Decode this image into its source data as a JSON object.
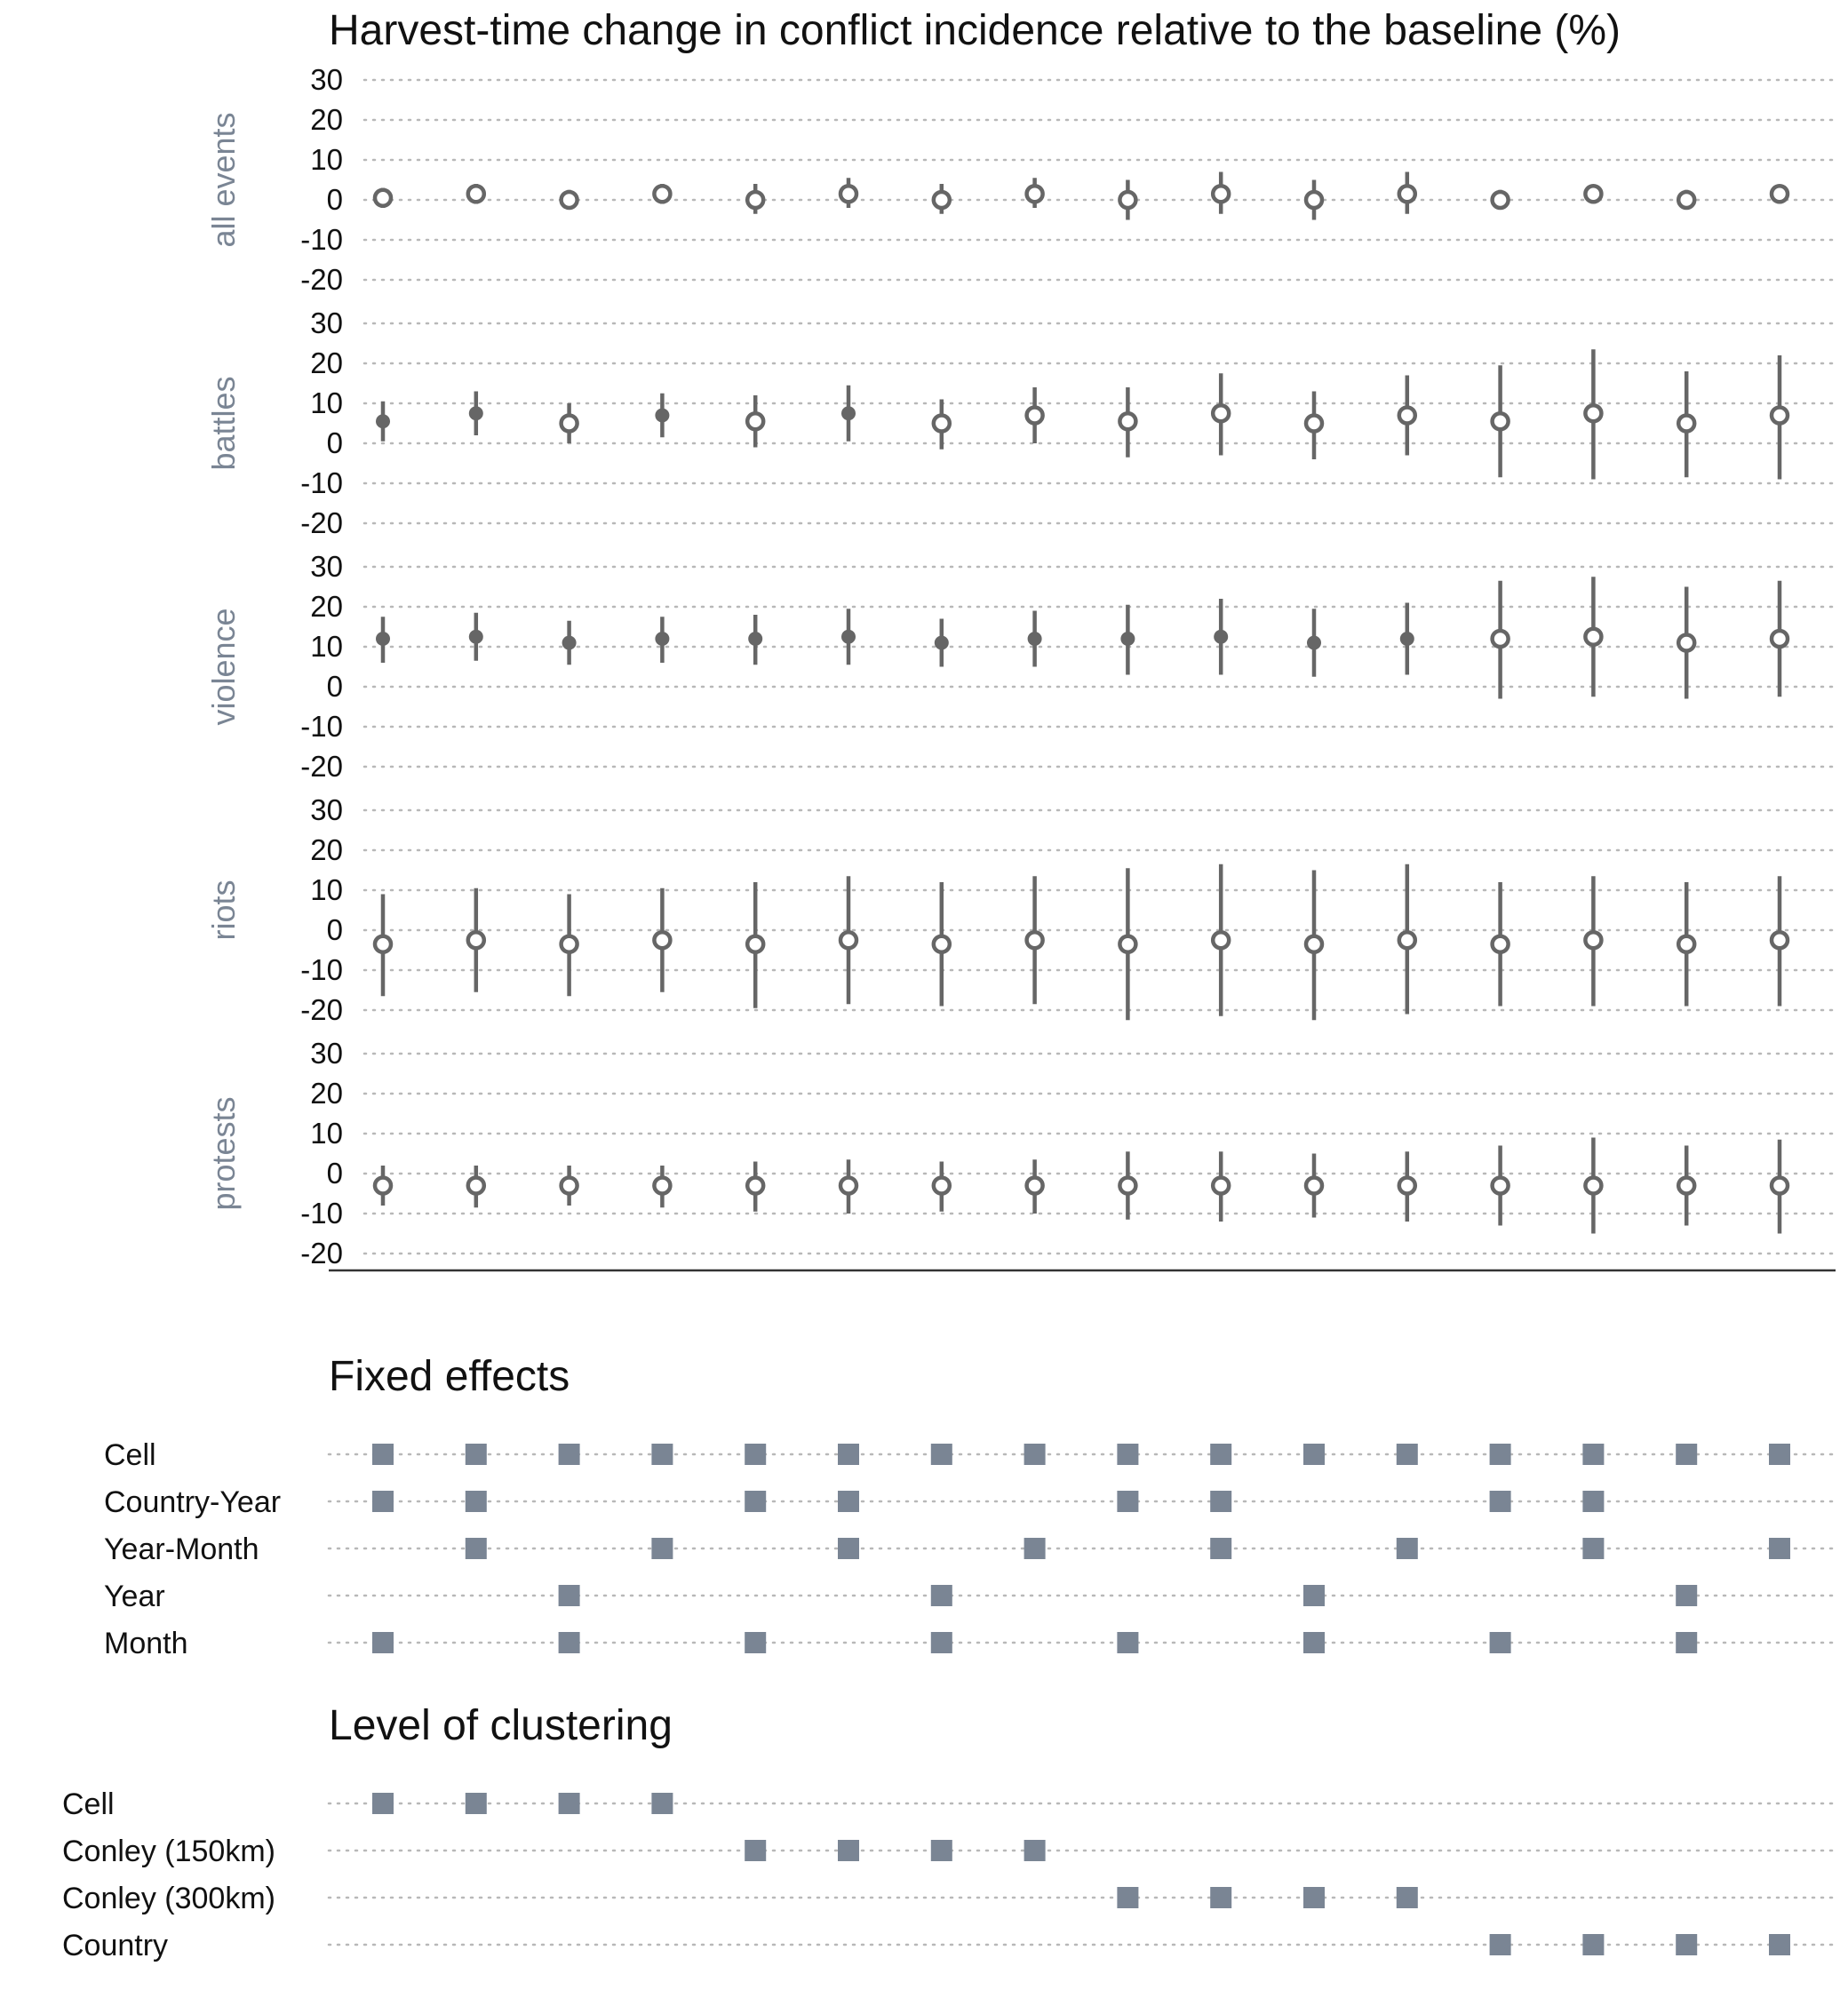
{
  "colors": {
    "estimate": "#666666",
    "marker": "#7a8594",
    "grid": "#b8b8b8",
    "text": "#111111",
    "panel_label": "#7a8594"
  },
  "chart_data": {
    "type": "scatter",
    "title": "Harvest-time change in conflict incidence relative to the baseline (%)",
    "ylim": [
      -20,
      30
    ],
    "yticks": [
      30,
      20,
      10,
      0,
      -10,
      -20
    ],
    "grid": true,
    "n_models": 16,
    "panels": [
      {
        "label": "all events",
        "est": [
          0.5,
          1.5,
          0.0,
          1.5,
          0.0,
          1.5,
          0.0,
          1.5,
          0.0,
          1.5,
          0.0,
          1.5,
          0.0,
          1.5,
          0.0,
          1.5
        ],
        "low": [
          -2.0,
          -1.0,
          -2.0,
          -1.0,
          -3.5,
          -2.0,
          -3.5,
          -2.0,
          -5.0,
          -3.5,
          -5.0,
          -3.5,
          -2.0,
          -0.5,
          -2.0,
          -0.5
        ],
        "high": [
          3.0,
          4.0,
          2.5,
          4.0,
          4.0,
          5.5,
          4.0,
          5.5,
          5.0,
          7.0,
          5.0,
          7.0,
          2.5,
          3.5,
          2.5,
          3.5
        ],
        "significant": [
          false,
          false,
          false,
          false,
          false,
          false,
          false,
          false,
          false,
          false,
          false,
          false,
          false,
          false,
          false,
          false
        ]
      },
      {
        "label": "battles",
        "est": [
          5.5,
          7.5,
          5.0,
          7.0,
          5.5,
          7.5,
          5.0,
          7.0,
          5.5,
          7.5,
          5.0,
          7.0,
          5.5,
          7.5,
          5.0,
          7.0
        ],
        "low": [
          0.5,
          2.0,
          0.0,
          1.5,
          -1.0,
          0.5,
          -1.5,
          0.0,
          -3.5,
          -3.0,
          -4.0,
          -3.0,
          -8.5,
          -9.0,
          -8.5,
          -9.0
        ],
        "high": [
          10.5,
          13.0,
          10.0,
          12.5,
          12.0,
          14.5,
          11.0,
          14.0,
          14.0,
          17.5,
          13.0,
          17.0,
          19.5,
          23.5,
          18.0,
          22.0
        ],
        "significant": [
          true,
          true,
          false,
          true,
          false,
          true,
          false,
          false,
          false,
          false,
          false,
          false,
          false,
          false,
          false,
          false
        ]
      },
      {
        "label": "violence",
        "est": [
          12.0,
          12.5,
          11.0,
          12.0,
          12.0,
          12.5,
          11.0,
          12.0,
          12.0,
          12.5,
          11.0,
          12.0,
          12.0,
          12.5,
          11.0,
          12.0
        ],
        "low": [
          6.0,
          6.5,
          5.5,
          6.0,
          5.5,
          5.5,
          5.0,
          5.0,
          3.0,
          3.0,
          2.5,
          3.0,
          -3.0,
          -2.5,
          -3.0,
          -2.5
        ],
        "high": [
          17.5,
          18.5,
          16.5,
          17.5,
          18.0,
          19.5,
          17.0,
          19.0,
          20.5,
          22.0,
          19.5,
          21.0,
          26.5,
          27.5,
          25.0,
          26.5
        ],
        "significant": [
          true,
          true,
          true,
          true,
          true,
          true,
          true,
          true,
          true,
          true,
          true,
          true,
          false,
          false,
          false,
          false
        ]
      },
      {
        "label": "riots",
        "est": [
          -3.5,
          -2.5,
          -3.5,
          -2.5,
          -3.5,
          -2.5,
          -3.5,
          -2.5,
          -3.5,
          -2.5,
          -3.5,
          -2.5,
          -3.5,
          -2.5,
          -3.5,
          -2.5
        ],
        "low": [
          -16.5,
          -15.5,
          -16.5,
          -15.5,
          -19.5,
          -18.5,
          -19.0,
          -18.5,
          -22.5,
          -21.5,
          -22.5,
          -21.0,
          -19.0,
          -19.0,
          -19.0,
          -19.0
        ],
        "high": [
          9.0,
          10.5,
          9.0,
          10.5,
          12.0,
          13.5,
          12.0,
          13.5,
          15.5,
          16.5,
          15.0,
          16.5,
          12.0,
          13.5,
          12.0,
          13.5
        ],
        "significant": [
          false,
          false,
          false,
          false,
          false,
          false,
          false,
          false,
          false,
          false,
          false,
          false,
          false,
          false,
          false,
          false
        ]
      },
      {
        "label": "protests",
        "est": [
          -3.0,
          -3.0,
          -3.0,
          -3.0,
          -3.0,
          -3.0,
          -3.0,
          -3.0,
          -3.0,
          -3.0,
          -3.0,
          -3.0,
          -3.0,
          -3.0,
          -3.0,
          -3.0
        ],
        "low": [
          -8.0,
          -8.5,
          -8.0,
          -8.5,
          -9.5,
          -10.0,
          -9.5,
          -10.0,
          -11.5,
          -12.0,
          -11.0,
          -12.0,
          -13.0,
          -15.0,
          -13.0,
          -15.0
        ],
        "high": [
          2.0,
          2.0,
          2.0,
          2.0,
          3.0,
          3.5,
          3.0,
          3.5,
          5.5,
          5.5,
          5.0,
          5.5,
          7.0,
          9.0,
          7.0,
          8.5
        ],
        "significant": [
          false,
          false,
          false,
          false,
          false,
          false,
          false,
          false,
          false,
          false,
          false,
          false,
          false,
          false,
          false,
          false
        ]
      }
    ]
  },
  "fixed_effects": {
    "title": "Fixed effects",
    "rows": [
      {
        "label": "Cell",
        "active": [
          1,
          1,
          1,
          1,
          1,
          1,
          1,
          1,
          1,
          1,
          1,
          1,
          1,
          1,
          1,
          1
        ]
      },
      {
        "label": "Country-Year",
        "active": [
          1,
          1,
          0,
          0,
          1,
          1,
          0,
          0,
          1,
          1,
          0,
          0,
          1,
          1,
          0,
          0
        ]
      },
      {
        "label": "Year-Month",
        "active": [
          0,
          1,
          0,
          1,
          0,
          1,
          0,
          1,
          0,
          1,
          0,
          1,
          0,
          1,
          0,
          1
        ]
      },
      {
        "label": "Year",
        "active": [
          0,
          0,
          1,
          0,
          0,
          0,
          1,
          0,
          0,
          0,
          1,
          0,
          0,
          0,
          1,
          0
        ]
      },
      {
        "label": "Month",
        "active": [
          1,
          0,
          1,
          0,
          1,
          0,
          1,
          0,
          1,
          0,
          1,
          0,
          1,
          0,
          1,
          0
        ]
      }
    ]
  },
  "clustering": {
    "title": "Level of clustering",
    "rows": [
      {
        "label": "Cell",
        "active": [
          1,
          1,
          1,
          1,
          0,
          0,
          0,
          0,
          0,
          0,
          0,
          0,
          0,
          0,
          0,
          0
        ]
      },
      {
        "label": "Conley (150km)",
        "active": [
          0,
          0,
          0,
          0,
          1,
          1,
          1,
          1,
          0,
          0,
          0,
          0,
          0,
          0,
          0,
          0
        ]
      },
      {
        "label": "Conley (300km)",
        "active": [
          0,
          0,
          0,
          0,
          0,
          0,
          0,
          0,
          1,
          1,
          1,
          1,
          0,
          0,
          0,
          0
        ]
      },
      {
        "label": "Country",
        "active": [
          0,
          0,
          0,
          0,
          0,
          0,
          0,
          0,
          0,
          0,
          0,
          0,
          1,
          1,
          1,
          1
        ]
      }
    ]
  }
}
